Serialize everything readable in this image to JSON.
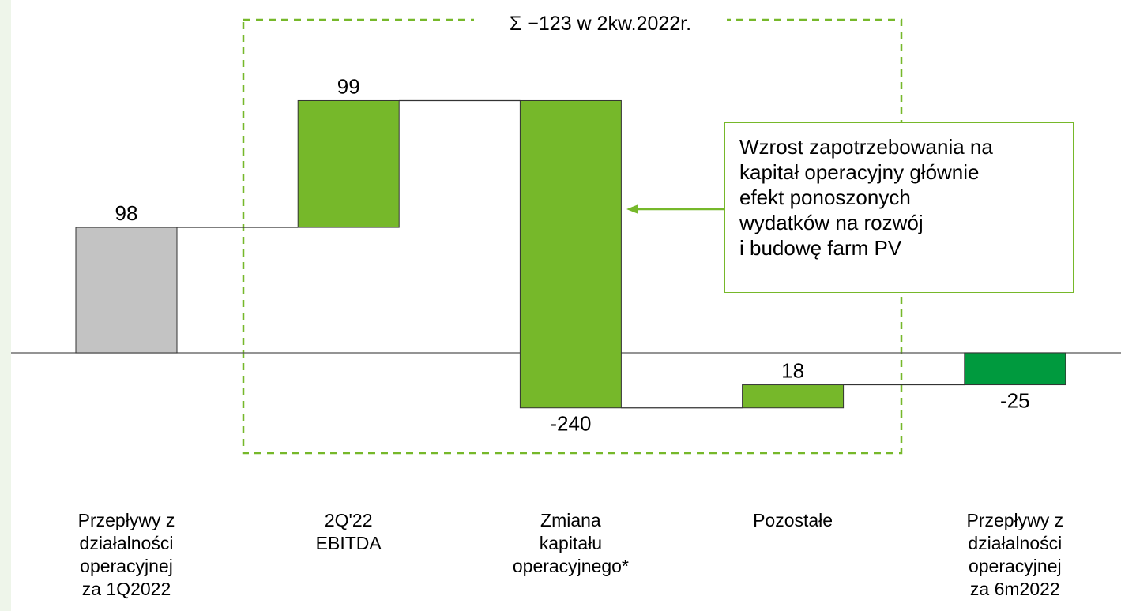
{
  "chart_data": {
    "type": "waterfall",
    "categories": [
      "Przepływy z\ndziałalności\noperacyjnej\nza 1Q2022",
      "2Q'22\nEBITDA",
      "Zmiana\nkapitału\noperacyjnego*",
      "Pozostałe",
      "Przepływy z\ndziałalności\noperacyjnej\nza 6m2022"
    ],
    "values": [
      98,
      99,
      -240,
      18,
      -25
    ],
    "colors": [
      "#c3c3c3",
      "#76b82a",
      "#76b82a",
      "#76b82a",
      "#009a3e"
    ],
    "bracket_label": "Σ −123 w 2kw.2022r.",
    "annotation": "Wzrost zapotrzebowania na\nkapitał operacyjny głównie\nefekt ponoszonych\nwydatków na rozwój\ni budowę farm PV"
  }
}
